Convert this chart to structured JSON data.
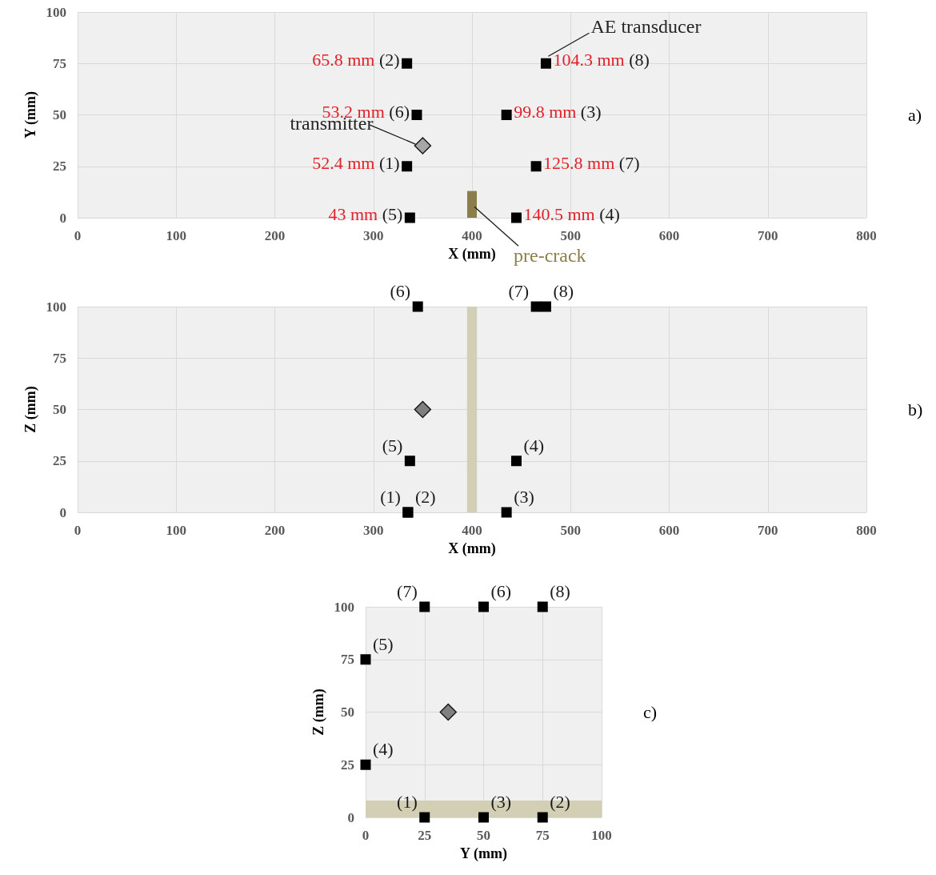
{
  "chart_data": [
    {
      "type": "scatter",
      "xlabel": "X (mm)",
      "ylabel": "Y (mm)",
      "xlim": [
        0,
        800
      ],
      "xticks": [
        0,
        100,
        200,
        300,
        400,
        500,
        600,
        700,
        800
      ],
      "ylim": [
        0,
        100
      ],
      "yticks": [
        0,
        25,
        50,
        75,
        100
      ],
      "grid": true,
      "annotations": [
        "a)",
        {
          "text": "52.4 mm (1)",
          "x": 334,
          "y": 25
        },
        {
          "text": "65.8 mm (2)",
          "x": 334,
          "y": 75
        },
        {
          "text": "99.8 mm (3)",
          "x": 435,
          "y": 50
        },
        {
          "text": "140.5 mm (4)",
          "x": 445,
          "y": 0
        },
        {
          "text": "43 mm (5)",
          "x": 337,
          "y": 0
        },
        {
          "text": "53.2 mm (6)",
          "x": 344,
          "y": 50
        },
        {
          "text": "125.8 mm (7)",
          "x": 465,
          "y": 25
        },
        {
          "text": "104.3 mm (8)",
          "x": 475,
          "y": 75
        }
      ],
      "series": [
        {
          "name": "AE transducer",
          "color": "#000000",
          "marker": "square",
          "x": [
            334,
            334,
            435,
            445,
            337,
            344,
            465,
            475
          ],
          "values": [
            25,
            75,
            50,
            0,
            0,
            50,
            25,
            75
          ]
        },
        {
          "name": "transmitter",
          "color": "#a6a6a6",
          "marker": "diamond",
          "x": [
            350
          ],
          "values": [
            35
          ]
        },
        {
          "name": "pre-crack",
          "type": "bar",
          "color": "#8c7e4a",
          "x": [
            400
          ],
          "values": [
            13
          ]
        }
      ]
    },
    {
      "type": "scatter",
      "xlabel": "X (mm)",
      "ylabel": "Z (mm)",
      "xlim": [
        0,
        800
      ],
      "xticks": [
        0,
        100,
        200,
        300,
        400,
        500,
        600,
        700,
        800
      ],
      "ylim": [
        0,
        100
      ],
      "yticks": [
        0,
        25,
        50,
        75,
        100
      ],
      "grid": true,
      "annotations": [
        "b)",
        {
          "text": "(1)",
          "x": 335,
          "y": 0
        },
        {
          "text": "(2)",
          "x": 335,
          "y": 0
        },
        {
          "text": "(3)",
          "x": 435,
          "y": 0
        },
        {
          "text": "(4)",
          "x": 445,
          "y": 25
        },
        {
          "text": "(5)",
          "x": 337,
          "y": 25
        },
        {
          "text": "(6)",
          "x": 345,
          "y": 100
        },
        {
          "text": "(7)",
          "x": 465,
          "y": 100
        },
        {
          "text": "(8)",
          "x": 475,
          "y": 100
        }
      ],
      "bands": [
        {
          "axis": "x",
          "from": 395,
          "to": 405,
          "color": "#d3cfb4"
        }
      ],
      "series": [
        {
          "color": "#000000",
          "marker": "square",
          "x": [
            335,
            335,
            435,
            445,
            337,
            345,
            465,
            475
          ],
          "values": [
            0,
            0,
            0,
            25,
            25,
            100,
            100,
            100
          ]
        },
        {
          "color": "#808080",
          "marker": "diamond",
          "x": [
            350
          ],
          "values": [
            50
          ]
        }
      ]
    },
    {
      "type": "scatter",
      "xlabel": "Y (mm)",
      "ylabel": "Z (mm)",
      "xlim": [
        0,
        100
      ],
      "xticks": [
        0,
        25,
        50,
        75,
        100
      ],
      "ylim": [
        0,
        100
      ],
      "yticks": [
        0,
        25,
        50,
        75,
        100
      ],
      "grid": true,
      "annotations": [
        "c)",
        {
          "text": "(1)",
          "x": 25,
          "y": 0
        },
        {
          "text": "(2)",
          "x": 75,
          "y": 0
        },
        {
          "text": "(3)",
          "x": 50,
          "y": 0
        },
        {
          "text": "(4)",
          "x": 0,
          "y": 25
        },
        {
          "text": "(5)",
          "x": 0,
          "y": 75
        },
        {
          "text": "(6)",
          "x": 50,
          "y": 100
        },
        {
          "text": "(7)",
          "x": 25,
          "y": 100
        },
        {
          "text": "(8)",
          "x": 75,
          "y": 100
        }
      ],
      "bands": [
        {
          "axis": "y",
          "from": 0,
          "to": 8,
          "color": "#d3cfb4"
        }
      ],
      "series": [
        {
          "color": "#000000",
          "marker": "square",
          "x": [
            25,
            75,
            50,
            0,
            0,
            50,
            25,
            75
          ],
          "values": [
            0,
            0,
            0,
            25,
            75,
            100,
            100,
            100
          ]
        },
        {
          "color": "#808080",
          "marker": "diamond",
          "x": [
            35
          ],
          "values": [
            50
          ]
        }
      ]
    }
  ]
}
